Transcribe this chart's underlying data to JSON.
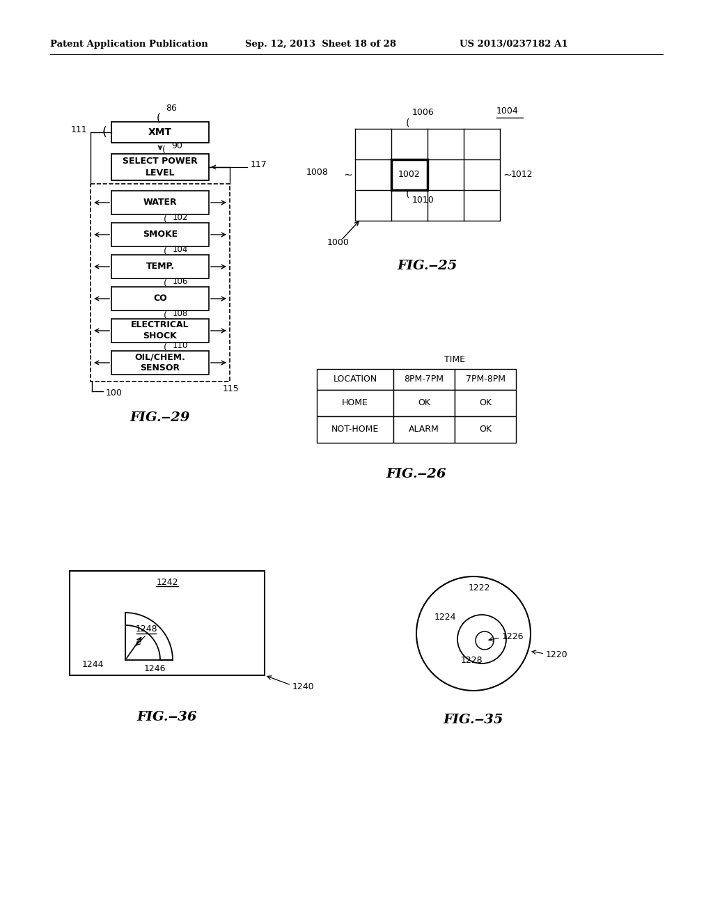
{
  "header_left": "Patent Application Publication",
  "header_mid": "Sep. 12, 2013  Sheet 18 of 28",
  "header_right": "US 2013/0237182 A1",
  "bg_color": "#ffffff",
  "fig29": {
    "title": "FIG.‒29",
    "label_86": "86",
    "label_111": "111",
    "label_90": "90",
    "label_117": "117",
    "label_100": "100",
    "label_115": "115",
    "box_xmt": "XMT",
    "box_spl": "SELECT POWER\nLEVEL",
    "sensors": [
      "WATER",
      "SMOKE",
      "TEMP.",
      "CO",
      "ELECTRICAL\nSHOCK",
      "OIL/CHEM.\nSENSOR"
    ],
    "sensor_labels": [
      "102",
      "104",
      "106",
      "108",
      "110",
      ""
    ]
  },
  "fig25": {
    "title": "FIG.‒25",
    "label_1004": "1004",
    "label_1006": "1006",
    "label_1008": "1008",
    "label_1002": "1002",
    "label_1010": "1010",
    "label_1012": "1012",
    "label_1000": "1000"
  },
  "fig26": {
    "title": "FIG.‒26",
    "time_label": "TIME",
    "col1": "LOCATION",
    "col2": "8PM-7PM",
    "col3": "7PM-8PM",
    "row1": [
      "HOME",
      "OK",
      "OK"
    ],
    "row2": [
      "NOT-HOME",
      "ALARM",
      "OK"
    ]
  },
  "fig35": {
    "title": "FIG.‒35",
    "label_1220": "1220",
    "label_1222": "1222",
    "label_1224": "1224",
    "label_1226": "1226",
    "label_1228": "1228"
  },
  "fig36": {
    "title": "FIG.‒36",
    "label_1240": "1240",
    "label_1242": "1242",
    "label_1244": "1244",
    "label_1246": "1246",
    "label_1248": "1248"
  }
}
